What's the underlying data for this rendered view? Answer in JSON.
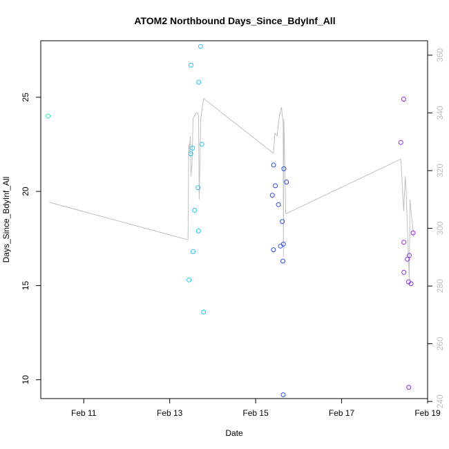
{
  "chart_data": {
    "type": "scatter",
    "title": "ATOM2 Northbound Days_Since_BdyInf_All",
    "xlabel": "Date",
    "ylabel": "Days_Since_BdyInf_All",
    "x_ticks": [
      "Feb 11",
      "Feb 13",
      "Feb 15",
      "Feb 17",
      "Feb 19"
    ],
    "y_ticks": [
      10,
      15,
      20,
      25
    ],
    "y2_ticks": [
      240,
      260,
      280,
      300,
      320,
      340,
      360
    ],
    "x_range": [
      "2020-02-10 00:00",
      "2020-02-19 00:00"
    ],
    "ylim": [
      9.0,
      28.0
    ],
    "y2lim": [
      241.0,
      365.0
    ],
    "series": [
      {
        "color": "#2ef0a0",
        "points": [
          {
            "x": "2020-02-10 04:06",
            "y": 24.0
          }
        ]
      },
      {
        "color": "#19c7f0",
        "points": [
          {
            "x": "2020-02-13 10:47",
            "y": 15.3
          },
          {
            "x": "2020-02-13 11:47",
            "y": 22.0
          },
          {
            "x": "2020-02-13 11:54",
            "y": 26.7
          },
          {
            "x": "2020-02-13 12:47",
            "y": 22.3
          },
          {
            "x": "2020-02-13 13:02",
            "y": 16.8
          },
          {
            "x": "2020-02-13 13:55",
            "y": 19.0
          },
          {
            "x": "2020-02-13 15:50",
            "y": 20.2
          },
          {
            "x": "2020-02-13 16:05",
            "y": 17.9
          },
          {
            "x": "2020-02-13 16:13",
            "y": 25.8
          },
          {
            "x": "2020-02-13 17:14",
            "y": 27.7
          },
          {
            "x": "2020-02-13 18:00",
            "y": 22.5
          },
          {
            "x": "2020-02-13 18:55",
            "y": 13.6
          }
        ]
      },
      {
        "color": "#2a4cf0",
        "points": [
          {
            "x": "2020-02-15 09:18",
            "y": 19.8
          },
          {
            "x": "2020-02-15 09:55",
            "y": 16.9
          },
          {
            "x": "2020-02-15 10:02",
            "y": 21.4
          },
          {
            "x": "2020-02-15 11:00",
            "y": 20.3
          },
          {
            "x": "2020-02-15 12:43",
            "y": 19.3
          },
          {
            "x": "2020-02-15 13:54",
            "y": 17.1
          },
          {
            "x": "2020-02-15 14:52",
            "y": 18.4
          },
          {
            "x": "2020-02-15 15:14",
            "y": 16.3
          },
          {
            "x": "2020-02-15 15:22",
            "y": 9.2
          },
          {
            "x": "2020-02-15 15:29",
            "y": 17.2
          },
          {
            "x": "2020-02-15 15:43",
            "y": 21.2
          },
          {
            "x": "2020-02-15 17:12",
            "y": 20.5
          }
        ]
      },
      {
        "color": "#8a2be2",
        "points": [
          {
            "x": "2020-02-18 09:04",
            "y": 22.6
          },
          {
            "x": "2020-02-18 10:40",
            "y": 24.9
          },
          {
            "x": "2020-02-18 10:47",
            "y": 17.3
          },
          {
            "x": "2020-02-18 10:47",
            "y": 15.7
          },
          {
            "x": "2020-02-18 12:43",
            "y": 16.4
          },
          {
            "x": "2020-02-18 13:23",
            "y": 15.2
          },
          {
            "x": "2020-02-18 13:30",
            "y": 9.6
          },
          {
            "x": "2020-02-18 13:47",
            "y": 16.6
          },
          {
            "x": "2020-02-18 14:46",
            "y": 15.1
          },
          {
            "x": "2020-02-18 15:55",
            "y": 17.8
          }
        ]
      }
    ],
    "secondary_line": {
      "axis": "right",
      "color": "#c0c0c0",
      "points": [
        {
          "x": "2020-02-10 04:49",
          "y": 309
        },
        {
          "x": "2020-02-13 10:15",
          "y": 296
        },
        {
          "x": "2020-02-13 10:38",
          "y": 329
        },
        {
          "x": "2020-02-13 10:53",
          "y": 326
        },
        {
          "x": "2020-02-13 11:31",
          "y": 332
        },
        {
          "x": "2020-02-13 11:54",
          "y": 318
        },
        {
          "x": "2020-02-13 12:25",
          "y": 322
        },
        {
          "x": "2020-02-13 13:02",
          "y": 338
        },
        {
          "x": "2020-02-13 14:46",
          "y": 340
        },
        {
          "x": "2020-02-13 15:43",
          "y": 340
        },
        {
          "x": "2020-02-13 16:05",
          "y": 339
        },
        {
          "x": "2020-02-13 16:29",
          "y": 310
        },
        {
          "x": "2020-02-13 17:20",
          "y": 338
        },
        {
          "x": "2020-02-13 18:55",
          "y": 345
        },
        {
          "x": "2020-02-15 09:55",
          "y": 326
        },
        {
          "x": "2020-02-15 10:47",
          "y": 333
        },
        {
          "x": "2020-02-15 12:00",
          "y": 332
        },
        {
          "x": "2020-02-15 13:14",
          "y": 339
        },
        {
          "x": "2020-02-15 14:24",
          "y": 342
        },
        {
          "x": "2020-02-15 15:22",
          "y": 336
        },
        {
          "x": "2020-02-15 15:29",
          "y": 290
        },
        {
          "x": "2020-02-15 15:43",
          "y": 338
        },
        {
          "x": "2020-02-15 16:48",
          "y": 305
        },
        {
          "x": "2020-02-18 09:04",
          "y": 324
        },
        {
          "x": "2020-02-18 10:40",
          "y": 306
        },
        {
          "x": "2020-02-18 11:31",
          "y": 318
        },
        {
          "x": "2020-02-18 12:00",
          "y": 313
        },
        {
          "x": "2020-02-18 13:47",
          "y": 282
        },
        {
          "x": "2020-02-18 14:10",
          "y": 310
        },
        {
          "x": "2020-02-18 15:43",
          "y": 300
        },
        {
          "x": "2020-02-18 16:12",
          "y": 297
        }
      ]
    },
    "grid": false,
    "legend": "none"
  }
}
